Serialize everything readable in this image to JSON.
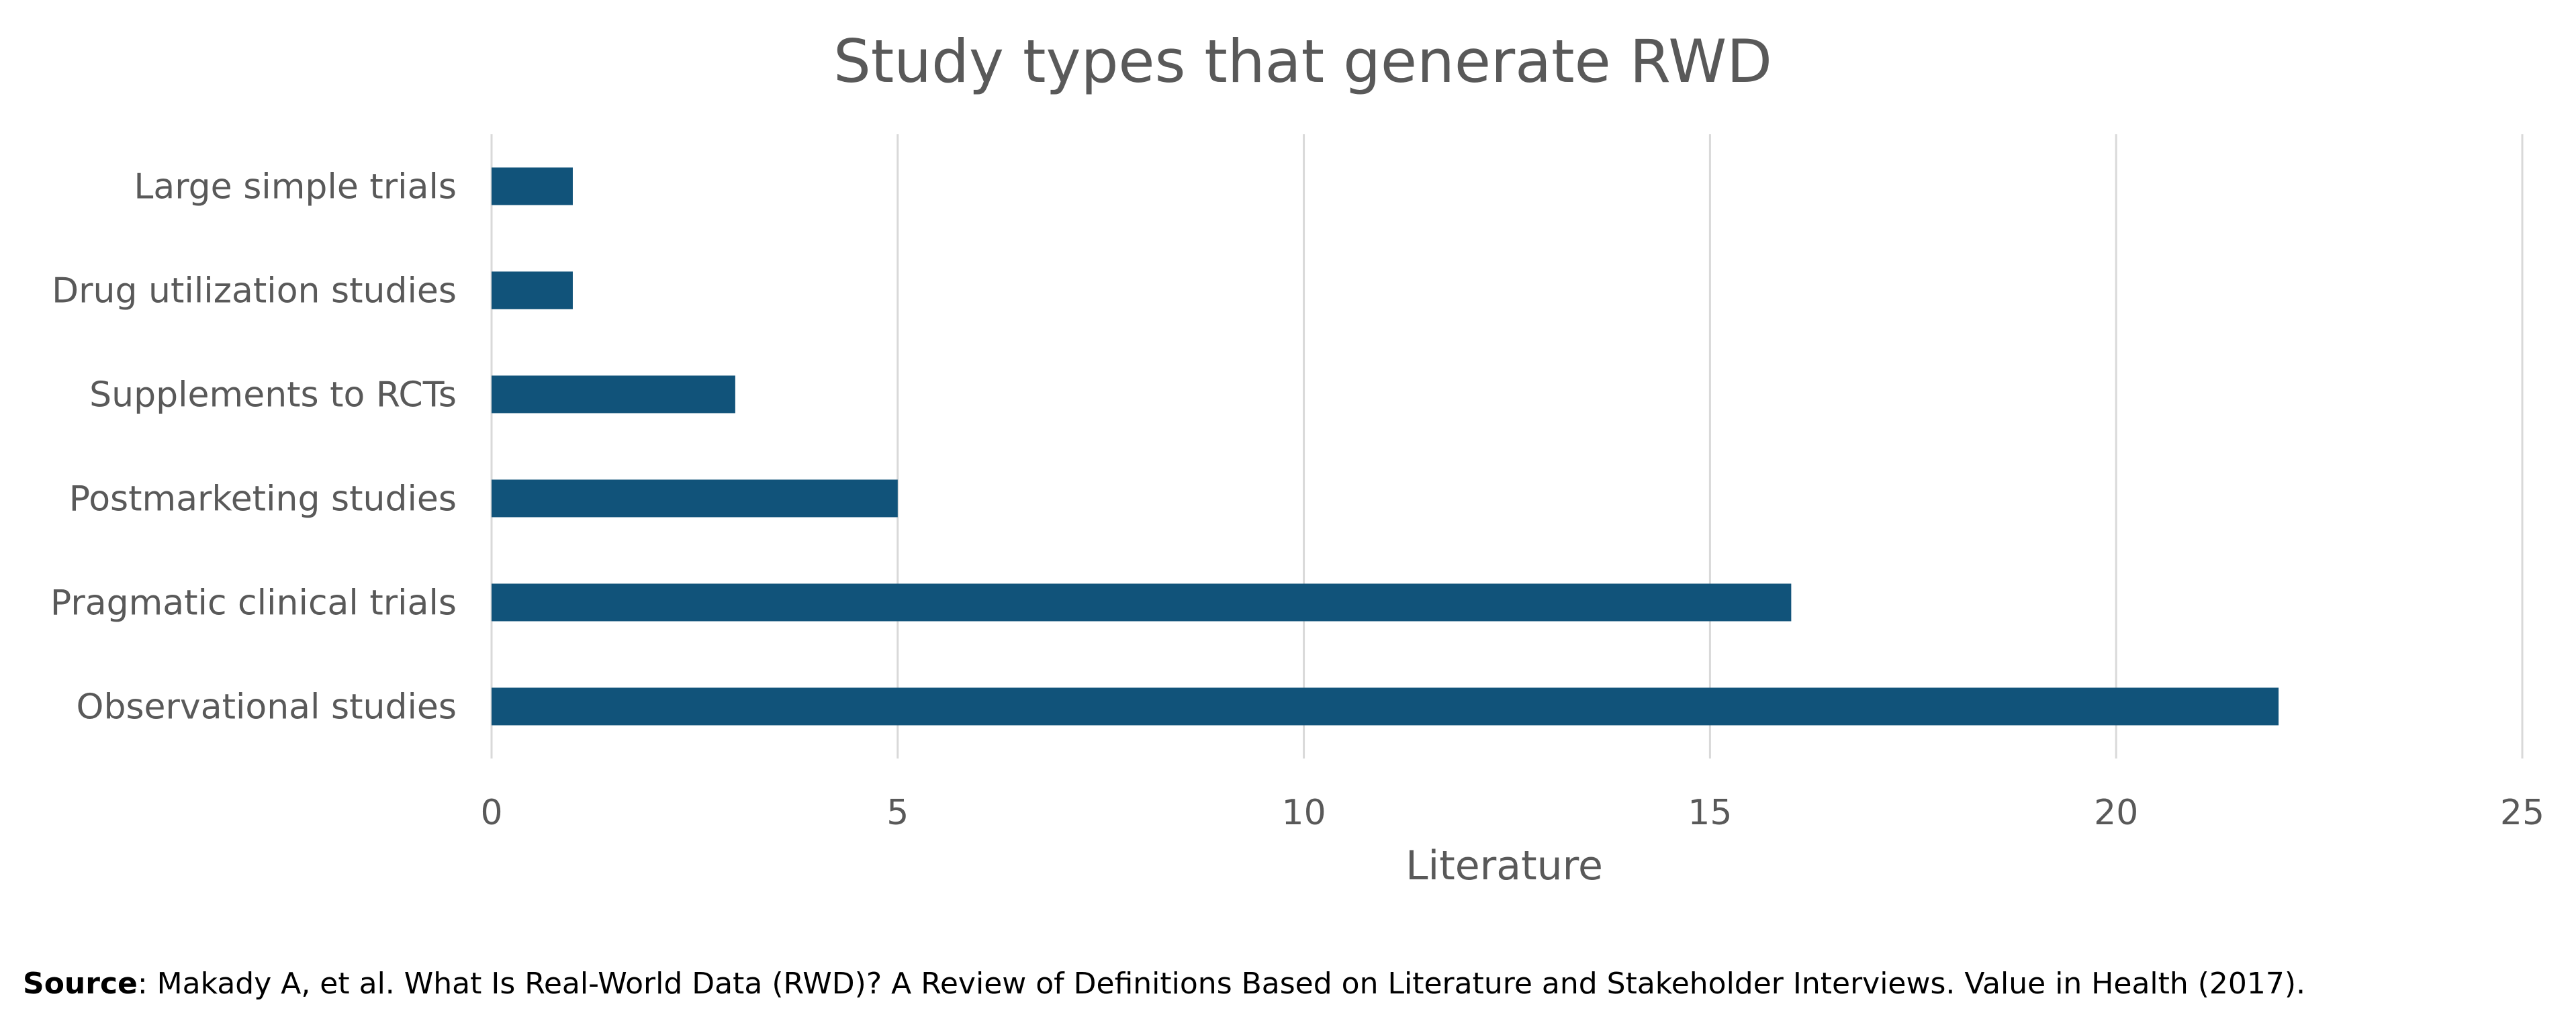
{
  "chart_data": {
    "type": "bar",
    "orientation": "horizontal",
    "title": "Study types that generate RWD",
    "categories": [
      "Large simple trials",
      "Drug utilization studies",
      "Supplements to RCTs",
      "Postmarketing studies",
      "Pragmatic clinical trials",
      "Observational studies"
    ],
    "values": [
      1,
      1,
      3,
      5,
      16,
      22
    ],
    "xlabel": "Literature",
    "ylabel": "",
    "xlim": [
      0,
      25
    ],
    "xticks": [
      0,
      5,
      10,
      15,
      20,
      25
    ],
    "grid": true,
    "legend": "none",
    "bar_color": "#11537A",
    "grid_color": "#D9D9D9"
  },
  "source": {
    "label": "Source",
    "text": ": Makady A, et al. What Is Real-World Data (RWD)? A Review of Definitions Based on Literature and Stakeholder Interviews. Value in Health (2017)."
  }
}
